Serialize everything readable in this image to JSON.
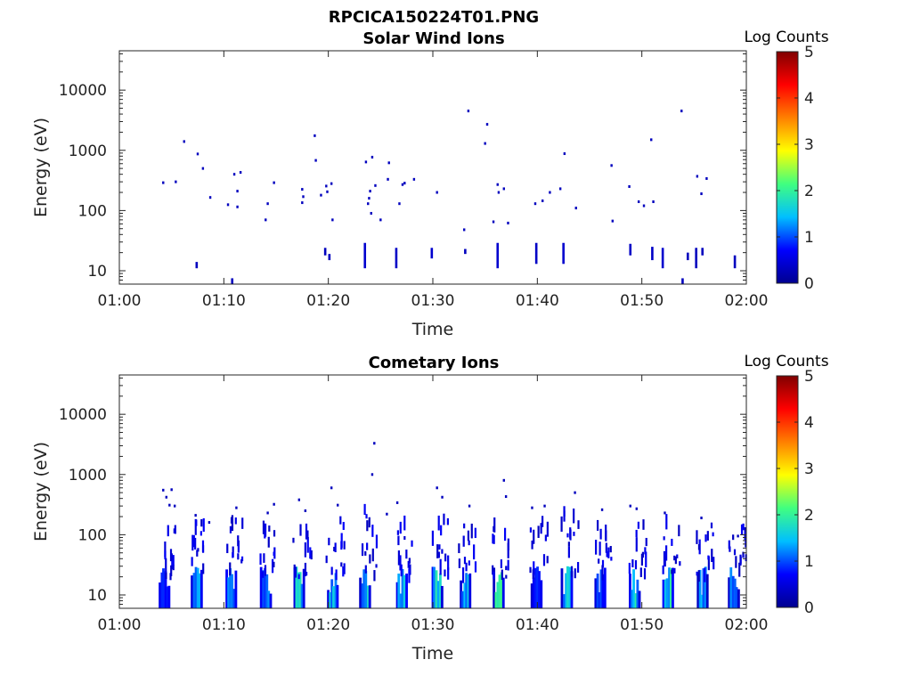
{
  "figure": {
    "title": "RPCICA150224T01.PNG"
  },
  "colormap": {
    "stops": [
      "#00008f",
      "#0000ff",
      "#00bfff",
      "#40ff80",
      "#ffff00",
      "#ff8000",
      "#ff0000",
      "#800000"
    ],
    "label": "Log Counts",
    "ticks": [
      "0",
      "1",
      "2",
      "3",
      "4",
      "5"
    ],
    "range": [
      0,
      5
    ]
  },
  "chart_data": [
    {
      "type": "heatmap",
      "title": "Solar Wind Ions",
      "xlabel": "Time",
      "ylabel": "Energy (eV)",
      "x_ticks": [
        "01:00",
        "01:10",
        "01:20",
        "01:30",
        "01:40",
        "01:50",
        "02:00"
      ],
      "x_range_minutes": [
        0,
        60
      ],
      "y_scale": "log",
      "y_range": [
        6,
        45000
      ],
      "y_ticks": [
        10,
        100,
        1000,
        10000
      ],
      "y_tick_labels": [
        "10",
        "100",
        "1000",
        "10000"
      ],
      "colorbar_label": "Log Counts",
      "scatter": [
        [
          4.2,
          290,
          0.3
        ],
        [
          5.4,
          300,
          0.3
        ],
        [
          6.2,
          1400,
          0.3
        ],
        [
          7.5,
          870,
          0.3
        ],
        [
          8.0,
          500,
          0.3
        ],
        [
          8.7,
          165,
          0.3
        ],
        [
          10.4,
          125,
          0.3
        ],
        [
          11.0,
          400,
          0.3
        ],
        [
          11.3,
          210,
          0.3
        ],
        [
          11.6,
          430,
          0.3
        ],
        [
          11.3,
          115,
          0.3
        ],
        [
          14.0,
          70,
          0.3
        ],
        [
          14.2,
          130,
          0.3
        ],
        [
          14.8,
          290,
          0.3
        ],
        [
          17.5,
          225,
          0.3
        ],
        [
          17.6,
          170,
          0.3
        ],
        [
          17.5,
          135,
          0.3
        ],
        [
          18.7,
          1750,
          0.3
        ],
        [
          18.8,
          680,
          0.3
        ],
        [
          19.3,
          180,
          0.3
        ],
        [
          19.8,
          255,
          0.3
        ],
        [
          19.9,
          205,
          0.3
        ],
        [
          20.3,
          280,
          0.3
        ],
        [
          20.4,
          70,
          0.3
        ],
        [
          23.6,
          640,
          0.3
        ],
        [
          23.8,
          130,
          0.3
        ],
        [
          23.9,
          160,
          0.3
        ],
        [
          24.0,
          210,
          0.3
        ],
        [
          24.1,
          90,
          0.3
        ],
        [
          24.2,
          770,
          0.3
        ],
        [
          24.5,
          260,
          0.3
        ],
        [
          25.0,
          70,
          0.3
        ],
        [
          25.7,
          330,
          0.3
        ],
        [
          25.8,
          620,
          0.3
        ],
        [
          26.8,
          130,
          0.3
        ],
        [
          27.1,
          270,
          0.3
        ],
        [
          27.3,
          285,
          0.3
        ],
        [
          28.2,
          330,
          0.3
        ],
        [
          30.4,
          200,
          0.3
        ],
        [
          33.0,
          48,
          0.3
        ],
        [
          33.4,
          4500,
          0.3
        ],
        [
          35.2,
          2700,
          0.3
        ],
        [
          35.0,
          1300,
          0.3
        ],
        [
          35.8,
          65,
          0.3
        ],
        [
          36.2,
          270,
          0.3
        ],
        [
          36.3,
          200,
          0.3
        ],
        [
          36.8,
          230,
          0.3
        ],
        [
          37.2,
          62,
          0.3
        ],
        [
          39.8,
          130,
          0.3
        ],
        [
          40.5,
          145,
          0.3
        ],
        [
          41.2,
          200,
          0.3
        ],
        [
          42.2,
          230,
          0.3
        ],
        [
          42.6,
          880,
          0.3
        ],
        [
          43.7,
          110,
          0.3
        ],
        [
          47.1,
          560,
          0.3
        ],
        [
          47.2,
          67,
          0.3
        ],
        [
          48.8,
          250,
          0.3
        ],
        [
          49.7,
          140,
          0.3
        ],
        [
          50.2,
          120,
          0.3
        ],
        [
          50.9,
          1500,
          0.3
        ],
        [
          51.1,
          140,
          0.3
        ],
        [
          53.8,
          4500,
          0.3
        ],
        [
          55.3,
          370,
          0.3
        ],
        [
          55.7,
          190,
          0.3
        ],
        [
          56.2,
          340,
          0.3
        ]
      ],
      "bars": [
        [
          7.4,
          11,
          14,
          0.3
        ],
        [
          10.8,
          6,
          7.5,
          0.3
        ],
        [
          19.7,
          18,
          24,
          0.3
        ],
        [
          20.1,
          15,
          19,
          0.3
        ],
        [
          23.5,
          11,
          29,
          0.4
        ],
        [
          26.5,
          11,
          24,
          0.35
        ],
        [
          29.9,
          16,
          24,
          0.4
        ],
        [
          33.1,
          19,
          23,
          0.3
        ],
        [
          36.2,
          11,
          29,
          0.4
        ],
        [
          39.9,
          13,
          29,
          0.35
        ],
        [
          42.5,
          13,
          29,
          0.4
        ],
        [
          48.9,
          18,
          28,
          0.35
        ],
        [
          51.0,
          15,
          25,
          0.35
        ],
        [
          52.0,
          11,
          24,
          0.4
        ],
        [
          54.4,
          15,
          20,
          0.3
        ],
        [
          55.2,
          11,
          24,
          0.3
        ],
        [
          55.8,
          18,
          24,
          0.3
        ],
        [
          58.9,
          11,
          18,
          0.3
        ],
        [
          53.9,
          6,
          7.5,
          0.3
        ]
      ]
    },
    {
      "type": "heatmap",
      "title": "Cometary Ions",
      "xlabel": "Time",
      "ylabel": "Energy (eV)",
      "x_ticks": [
        "01:00",
        "01:10",
        "01:20",
        "01:30",
        "01:40",
        "01:50",
        "02:00"
      ],
      "x_range_minutes": [
        0,
        60
      ],
      "y_scale": "log",
      "y_range": [
        6,
        45000
      ],
      "y_ticks": [
        10,
        100,
        1000,
        10000
      ],
      "y_tick_labels": [
        "10",
        "100",
        "1000",
        "10000"
      ],
      "colorbar_label": "Log Counts",
      "bursts": [
        {
          "t": 4.3,
          "lo": 2,
          "hi": 40,
          "core": 0.9
        },
        {
          "t": 7.4,
          "lo": 2,
          "hi": 55,
          "core": 1.5
        },
        {
          "t": 10.7,
          "lo": 2,
          "hi": 45,
          "core": 1.5
        },
        {
          "t": 14.0,
          "lo": 2,
          "hi": 40,
          "core": 1.2
        },
        {
          "t": 17.2,
          "lo": 2,
          "hi": 40,
          "core": 1.9
        },
        {
          "t": 20.4,
          "lo": 2,
          "hi": 60,
          "core": 1.7
        },
        {
          "t": 23.5,
          "lo": 2,
          "hi": 70,
          "core": 1.6
        },
        {
          "t": 27.0,
          "lo": 2,
          "hi": 40,
          "core": 1.6
        },
        {
          "t": 30.4,
          "lo": 2,
          "hi": 50,
          "core": 1.8
        },
        {
          "t": 33.1,
          "lo": 2,
          "hi": 50,
          "core": 1.5
        },
        {
          "t": 36.3,
          "lo": 2,
          "hi": 60,
          "core": 2.0
        },
        {
          "t": 39.9,
          "lo": 2,
          "hi": 50,
          "core": 1.1
        },
        {
          "t": 42.8,
          "lo": 2,
          "hi": 60,
          "core": 1.7
        },
        {
          "t": 46.0,
          "lo": 2,
          "hi": 40,
          "core": 1.2
        },
        {
          "t": 49.3,
          "lo": 2,
          "hi": 50,
          "core": 1.8
        },
        {
          "t": 52.5,
          "lo": 2,
          "hi": 45,
          "core": 1.9
        },
        {
          "t": 55.8,
          "lo": 2,
          "hi": 40,
          "core": 1.7
        },
        {
          "t": 58.8,
          "lo": 2,
          "hi": 35,
          "core": 1.2
        }
      ],
      "scatter": [
        [
          4.2,
          550,
          0.3
        ],
        [
          4.5,
          420,
          0.3
        ],
        [
          4.8,
          310,
          0.3
        ],
        [
          5.0,
          560,
          0.3
        ],
        [
          5.3,
          300,
          0.3
        ],
        [
          7.3,
          210,
          0.3
        ],
        [
          8.6,
          160,
          0.3
        ],
        [
          11.2,
          280,
          0.3
        ],
        [
          14.2,
          230,
          0.3
        ],
        [
          14.8,
          320,
          0.3
        ],
        [
          17.2,
          380,
          0.3
        ],
        [
          17.8,
          250,
          0.3
        ],
        [
          20.3,
          600,
          0.3
        ],
        [
          20.9,
          310,
          0.3
        ],
        [
          24.2,
          1000,
          0.3
        ],
        [
          24.4,
          3300,
          0.3
        ],
        [
          25.6,
          220,
          0.3
        ],
        [
          26.6,
          340,
          0.3
        ],
        [
          30.4,
          600,
          0.3
        ],
        [
          30.9,
          420,
          0.3
        ],
        [
          33.5,
          300,
          0.3
        ],
        [
          36.8,
          800,
          0.3
        ],
        [
          37.0,
          430,
          0.3
        ],
        [
          39.5,
          280,
          0.3
        ],
        [
          40.7,
          300,
          0.3
        ],
        [
          43.6,
          500,
          0.3
        ],
        [
          46.2,
          260,
          0.3
        ],
        [
          48.9,
          300,
          0.3
        ],
        [
          49.5,
          270,
          0.3
        ],
        [
          52.2,
          230,
          0.3
        ],
        [
          55.7,
          190,
          0.3
        ],
        [
          59.2,
          95,
          0.3
        ]
      ]
    }
  ]
}
